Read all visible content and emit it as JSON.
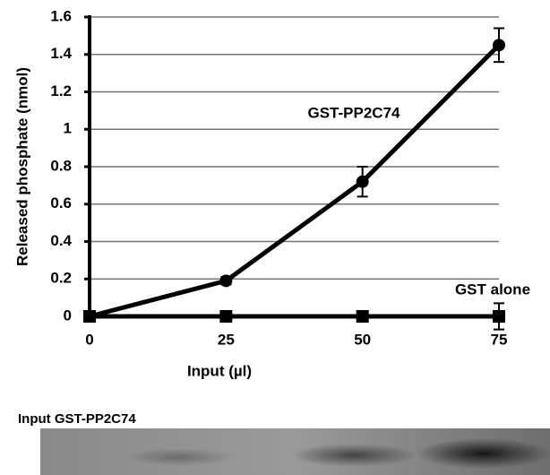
{
  "chart_data": {
    "type": "line",
    "x": [
      0,
      25,
      50,
      75
    ],
    "xlim": [
      0,
      75
    ],
    "xticks": [
      0,
      25,
      50,
      75
    ],
    "ylim": [
      0,
      1.6
    ],
    "yticks": [
      0,
      0.2,
      0.4,
      0.6,
      0.8,
      1,
      1.2,
      1.4,
      1.6
    ],
    "xlabel": "Input (µl)",
    "ylabel": "Released phosphate (nmol)",
    "grid": true,
    "series": [
      {
        "name": "GST-PP2C74",
        "color": "#000000",
        "marker": "circle",
        "values": [
          0,
          0.19,
          0.72,
          1.45
        ],
        "errors": [
          0,
          0.02,
          0.08,
          0.09
        ]
      },
      {
        "name": "GST alone",
        "color": "#000000",
        "marker": "square",
        "values": [
          0,
          0,
          0,
          0
        ],
        "errors": [
          0,
          0,
          0,
          0.07
        ]
      }
    ]
  },
  "gel": {
    "label": "Input GST-PP2C74"
  }
}
